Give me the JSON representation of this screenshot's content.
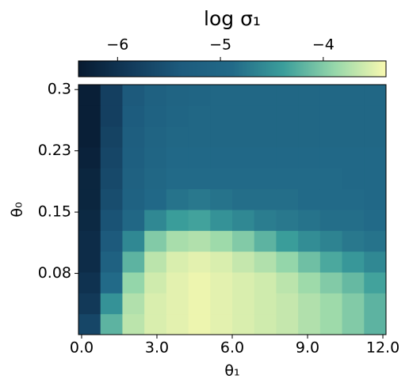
{
  "chart_data": {
    "type": "heatmap",
    "title": "log σ₁",
    "x_label": "θ₁",
    "y_label": "θ₀",
    "x_edges": [
      -0.125,
      0.75,
      1.625,
      2.5,
      3.375,
      4.25,
      5.125,
      6.0,
      6.875,
      7.75,
      8.625,
      9.5,
      10.375,
      11.25,
      12.125
    ],
    "y_edges": [
      0,
      0.0255,
      0.051,
      0.0765,
      0.102,
      0.1275,
      0.153,
      0.1785,
      0.204,
      0.2295,
      0.255,
      0.2805,
      0.306
    ],
    "z": [
      [
        -5.7,
        -4.2,
        -3.7,
        -3.55,
        -3.5,
        -3.45,
        -3.5,
        -3.55,
        -3.6,
        -3.65,
        -3.75,
        -3.85,
        -4.0,
        -4.2
      ],
      [
        -5.9,
        -4.5,
        -3.75,
        -3.55,
        -3.5,
        -3.45,
        -3.5,
        -3.55,
        -3.6,
        -3.65,
        -3.75,
        -3.85,
        -4.0,
        -4.2
      ],
      [
        -6.0,
        -4.9,
        -3.9,
        -3.6,
        -3.5,
        -3.45,
        -3.5,
        -3.55,
        -3.6,
        -3.7,
        -3.85,
        -4.0,
        -4.15,
        -4.35
      ],
      [
        -6.1,
        -5.2,
        -4.2,
        -3.7,
        -3.55,
        -3.5,
        -3.55,
        -3.65,
        -3.75,
        -3.9,
        -4.1,
        -4.3,
        -4.45,
        -4.6
      ],
      [
        -6.1,
        -5.4,
        -4.6,
        -4.0,
        -3.8,
        -3.75,
        -3.85,
        -4.0,
        -4.2,
        -4.4,
        -4.55,
        -4.65,
        -4.75,
        -4.8
      ],
      [
        -6.15,
        -5.5,
        -5.0,
        -4.6,
        -4.4,
        -4.35,
        -4.5,
        -4.6,
        -4.7,
        -4.75,
        -4.8,
        -4.85,
        -4.85,
        -4.9
      ],
      [
        -6.2,
        -5.6,
        -5.15,
        -4.95,
        -4.8,
        -4.75,
        -4.8,
        -4.85,
        -4.85,
        -4.85,
        -4.9,
        -4.9,
        -4.9,
        -4.95
      ],
      [
        -6.2,
        -5.65,
        -5.2,
        -5.0,
        -4.9,
        -4.9,
        -4.9,
        -4.9,
        -4.9,
        -4.9,
        -4.9,
        -4.9,
        -4.95,
        -4.95
      ],
      [
        -6.25,
        -5.7,
        -5.25,
        -5.05,
        -4.95,
        -4.95,
        -4.95,
        -4.95,
        -4.95,
        -4.95,
        -4.95,
        -4.95,
        -4.95,
        -4.95
      ],
      [
        -6.3,
        -5.75,
        -5.3,
        -5.1,
        -5.0,
        -5.0,
        -5.0,
        -5.0,
        -5.0,
        -5.0,
        -5.0,
        -5.0,
        -5.0,
        -5.0
      ],
      [
        -6.3,
        -5.8,
        -5.35,
        -5.15,
        -5.05,
        -5.0,
        -5.0,
        -5.0,
        -5.0,
        -5.0,
        -5.0,
        -5.0,
        -5.0,
        -5.0
      ],
      [
        -6.3,
        -5.8,
        -5.4,
        -5.2,
        -5.1,
        -5.05,
        -5.0,
        -5.0,
        -5.0,
        -5.0,
        -5.0,
        -5.0,
        -5.0,
        -5.0
      ]
    ],
    "xlim": [
      -0.125,
      12.125
    ],
    "ylim": [
      0,
      0.306
    ],
    "zlim": [
      -6.38,
      -3.39
    ],
    "xticks": [
      {
        "value": 0,
        "label": "0.0"
      },
      {
        "value": 3,
        "label": "3.0"
      },
      {
        "value": 6,
        "label": "6.0"
      },
      {
        "value": 9,
        "label": "9.0"
      },
      {
        "value": 12,
        "label": "12.0"
      }
    ],
    "yticks": [
      {
        "value": 0.075,
        "label": "0.08"
      },
      0.15,
      {
        "value": 0.225,
        "label": "0.23"
      },
      0.3
    ],
    "zticks": [
      {
        "value": -6,
        "label": "−6"
      },
      {
        "value": -5,
        "label": "−5"
      },
      {
        "value": -4,
        "label": "−4"
      }
    ],
    "colormap": [
      "#071a30",
      "#123a5a",
      "#1d5b7d",
      "#226a88",
      "#3b9e9b",
      "#96d7aa",
      "#f9f9b0"
    ],
    "colorbar_position": "top"
  }
}
